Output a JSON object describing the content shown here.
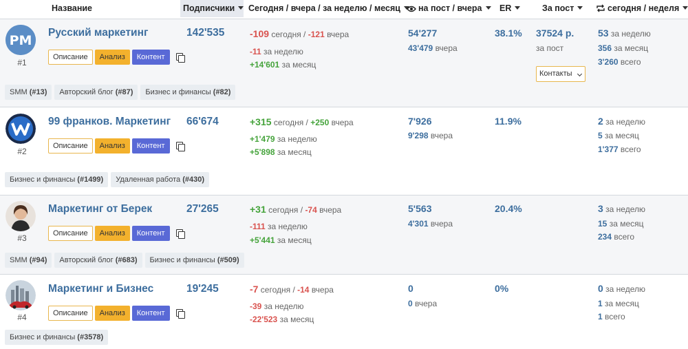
{
  "header": {
    "name": "Название",
    "subscribers": "Подписчики",
    "growth": "Сегодня / вчера / за неделю / месяц",
    "views": "на пост / вчера",
    "er": "ER",
    "price": "За пост",
    "reposts": "сегодня / неделя"
  },
  "buttons": {
    "desc": "Описание",
    "analysis": "Анализ",
    "content": "Контент",
    "contacts": "Контакты"
  },
  "rows": [
    {
      "rank": "#1",
      "title": "Русский маркетинг",
      "subscribers": "142'535",
      "today": "-109",
      "today_label": "сегодня /",
      "yesterday": "-121",
      "yesterday_label": "вчера",
      "week": "-11",
      "week_label": "за неделю",
      "month": "+14'601",
      "month_label": "за месяц",
      "views": "54'277",
      "views_yesterday": "43'479",
      "views_yesterday_label": "вчера",
      "er": "38.1%",
      "price": "37524 р.",
      "price_label": "за пост",
      "rep_week": "53",
      "rep_week_label": "за неделю",
      "rep_month": "356",
      "rep_month_label": "за месяц",
      "rep_total": "3'260",
      "rep_total_label": "всего",
      "tags": [
        {
          "name": "SMM",
          "rank": "(#13)"
        },
        {
          "name": "Авторский блог",
          "rank": "(#87)"
        },
        {
          "name": "Бизнес и финансы",
          "rank": "(#82)"
        }
      ]
    },
    {
      "rank": "#2",
      "title": "99 франков. Маркетинг",
      "subscribers": "66'674",
      "today": "+315",
      "today_label": "сегодня /",
      "yesterday": "+250",
      "yesterday_label": "вчера",
      "week": "+1'479",
      "week_label": "за неделю",
      "month": "+5'898",
      "month_label": "за месяц",
      "views": "7'926",
      "views_yesterday": "9'298",
      "views_yesterday_label": "вчера",
      "er": "11.9%",
      "rep_week": "2",
      "rep_week_label": "за неделю",
      "rep_month": "5",
      "rep_month_label": "за месяц",
      "rep_total": "1'377",
      "rep_total_label": "всего",
      "tags": [
        {
          "name": "Бизнес и финансы",
          "rank": "(#1499)"
        },
        {
          "name": "Удаленная работа",
          "rank": "(#430)"
        }
      ]
    },
    {
      "rank": "#3",
      "title": "Маркетинг от Берек",
      "subscribers": "27'265",
      "today": "+31",
      "today_label": "сегодня /",
      "yesterday": "-74",
      "yesterday_label": "вчера",
      "week": "-111",
      "week_label": "за неделю",
      "month": "+5'441",
      "month_label": "за месяц",
      "views": "5'563",
      "views_yesterday": "4'301",
      "views_yesterday_label": "вчера",
      "er": "20.4%",
      "rep_week": "3",
      "rep_week_label": "за неделю",
      "rep_month": "15",
      "rep_month_label": "за месяц",
      "rep_total": "234",
      "rep_total_label": "всего",
      "tags": [
        {
          "name": "SMM",
          "rank": "(#94)"
        },
        {
          "name": "Авторский блог",
          "rank": "(#683)"
        },
        {
          "name": "Бизнес и финансы",
          "rank": "(#509)"
        }
      ]
    },
    {
      "rank": "#4",
      "title": "Маркетинг и Бизнес",
      "subscribers": "19'245",
      "today": "-7",
      "today_label": "сегодня /",
      "yesterday": "-14",
      "yesterday_label": "вчера",
      "week": "-39",
      "week_label": "за неделю",
      "month": "-22'523",
      "month_label": "за месяц",
      "views": "0",
      "views_yesterday": "0",
      "views_yesterday_label": "вчера",
      "er": "0%",
      "rep_week": "0",
      "rep_week_label": "за неделю",
      "rep_month": "1",
      "rep_month_label": "за месяц",
      "rep_total": "1",
      "rep_total_label": "всего",
      "tags": [
        {
          "name": "Бизнес и финансы",
          "rank": "(#3578)"
        }
      ]
    }
  ],
  "avatars": {
    "row1_text": "PM"
  },
  "colors": {
    "link": "#3d6e9e",
    "positive": "#45a33b",
    "negative": "#d9534f",
    "analysis": "#f3b12d",
    "content": "#5969d6"
  }
}
